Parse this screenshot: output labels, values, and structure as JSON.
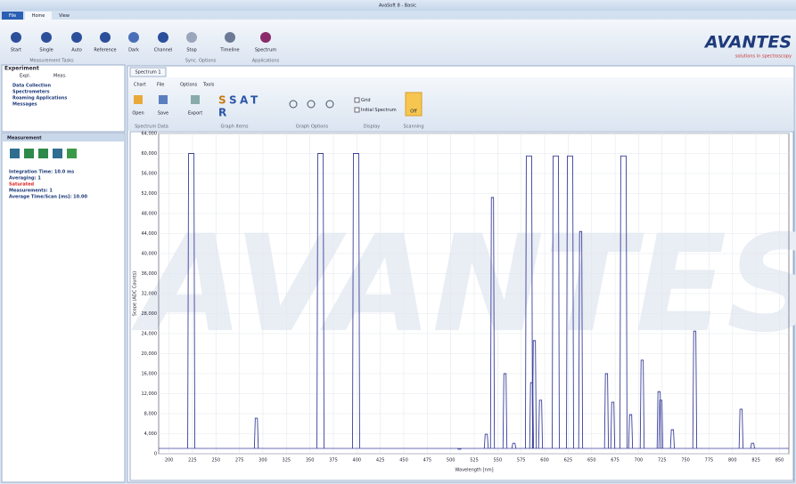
{
  "window": {
    "title": "AvaSoft 8 - Basic"
  },
  "menu_tabs": [
    "File",
    "Home",
    "View"
  ],
  "ribbon": {
    "buttons": [
      "Start",
      "Single",
      "Auto",
      "Reference",
      "Dark",
      "Channel",
      "Stop",
      "Timeline",
      "Spectrum"
    ],
    "groups": [
      "Measurement Tasks",
      "Sync. Options",
      "Applications"
    ]
  },
  "logo": {
    "name": "AVANTES",
    "tagline": "solutions in spectroscopy"
  },
  "experiment": {
    "title": "Experiment",
    "tabs": [
      "Expl.",
      "Meas."
    ],
    "items": [
      "Data Collection",
      "Spectrometers",
      "Roaming Applications",
      "Messages"
    ]
  },
  "measurement": {
    "title": "Measurement",
    "info": [
      "Integration Time: 10.0 ms",
      "Averaging: 1",
      "Saturated",
      "Measurements: 1",
      "Average Time/Scan [ms]: 10.00"
    ]
  },
  "document": {
    "tab": "Spectrum 1",
    "ribbon_tabs": [
      "Chart",
      "File",
      "Options",
      "Tools"
    ],
    "buttons": [
      "Open",
      "Save",
      "Export",
      "Off"
    ],
    "groups": [
      "Spectrum Data",
      "Graph Items",
      "Graph Options",
      "Display",
      "Scanning"
    ],
    "checkboxes": [
      "Grid",
      "Initial Spectrum"
    ]
  },
  "plot": {
    "xlabel": "Wavelength [nm]",
    "ylabel": "Scope (ADC Counts)",
    "watermark": "AVANTES",
    "color": "#3a3f9a",
    "grid": true,
    "xlim": [
      189,
      860
    ],
    "xticks": [
      200,
      225,
      250,
      275,
      300,
      325,
      350,
      375,
      400,
      425,
      450,
      475,
      500,
      525,
      550,
      575,
      600,
      625,
      650,
      675,
      700,
      725,
      750,
      775,
      800,
      825,
      850
    ],
    "ylim": [
      0,
      64000
    ],
    "yticks": [
      0,
      {
        "value": 4000,
        "label": "4,000"
      },
      {
        "value": 8000,
        "label": "8,000"
      },
      {
        "value": 12000,
        "label": "12,000"
      },
      {
        "value": 16000,
        "label": "16,000"
      },
      {
        "value": 20000,
        "label": "20,000"
      },
      {
        "value": 24000,
        "label": "24,000"
      },
      {
        "value": 28000,
        "label": "28,000"
      },
      {
        "value": 32000,
        "label": "32,000"
      },
      {
        "value": 36000,
        "label": "36,000"
      },
      {
        "value": 40000,
        "label": "40,000"
      },
      {
        "value": 44000,
        "label": "44,000"
      },
      {
        "value": 48000,
        "label": "48,000"
      },
      {
        "value": 52000,
        "label": "52,000"
      },
      {
        "value": 56000,
        "label": "56,000"
      },
      {
        "value": 60000,
        "label": "60,000"
      },
      {
        "value": 64000,
        "label": "64,000"
      }
    ],
    "peaks": {
      "x": [
        223.7,
        293,
        361.3,
        399.2,
        509.3,
        537.8,
        544.4,
        557.7,
        567.2,
        583.3,
        586.1,
        589,
        595.6,
        611.8,
        627,
        638.3,
        665.8,
        672.5,
        683.9,
        691.5,
        703.8,
        721.8,
        723.7,
        736,
        759.8,
        809.1,
        821.4
      ],
      "y": [
        60000,
        7100,
        60000,
        60000,
        900,
        3900,
        51200,
        16000,
        2100,
        59500,
        14200,
        22600,
        10700,
        59500,
        59500,
        44400,
        16000,
        10300,
        59500,
        7800,
        18700,
        12400,
        10700,
        4800,
        24500,
        8900,
        2100
      ]
    }
  }
}
